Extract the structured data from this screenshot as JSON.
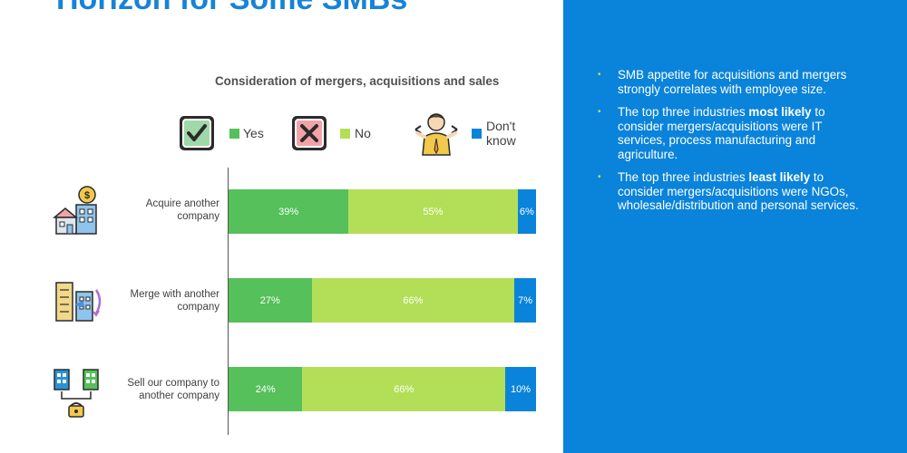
{
  "title": "Horizon for Some SMBs",
  "colors": {
    "yes": "#56c05a",
    "no": "#b3df58",
    "dont_know": "#0a83da",
    "panel": "#0a83da",
    "bullet": "#c5e16a"
  },
  "bullets": [
    {
      "parts": [
        {
          "text": "SMB appetite for acquisitions and mergers strongly correlates with employee size.",
          "bold": false
        }
      ]
    },
    {
      "parts": [
        {
          "text": "The top three industries ",
          "bold": false
        },
        {
          "text": "most likely",
          "bold": true
        },
        {
          "text": " to consider mergers/acquisitions were IT services, process manufacturing and agriculture.",
          "bold": false
        }
      ]
    },
    {
      "parts": [
        {
          "text": "The top three industries ",
          "bold": false
        },
        {
          "text": "least likely",
          "bold": true
        },
        {
          "text": " to consider mergers/acquisitions were NGOs, wholesale/distribution and personal services.",
          "bold": false
        }
      ]
    }
  ],
  "chart_data": {
    "type": "bar",
    "orientation": "horizontal",
    "stacked": true,
    "title": "Consideration of mergers, acquisitions and sales",
    "categories": [
      "Acquire another company",
      "Merge with another company",
      "Sell our company to another company"
    ],
    "series": [
      {
        "name": "Yes",
        "values": [
          39,
          27,
          24
        ],
        "labels": [
          "39%",
          "27%",
          "24%"
        ],
        "icon": "checkbox-check-icon"
      },
      {
        "name": "No",
        "values": [
          55,
          66,
          66
        ],
        "labels": [
          "55%",
          "66%",
          "66%"
        ],
        "icon": "checkbox-x-icon"
      },
      {
        "name": "Don't know",
        "values": [
          6,
          7,
          10
        ],
        "labels": [
          "6%",
          "7%",
          "10%"
        ],
        "icon": "shrugging-person-icon"
      }
    ],
    "category_icons": [
      "buildings-dollar-icon",
      "merge-buildings-icon",
      "sell-company-icon"
    ],
    "xlim": [
      0,
      100
    ],
    "legend_position": "top",
    "grid": false
  }
}
